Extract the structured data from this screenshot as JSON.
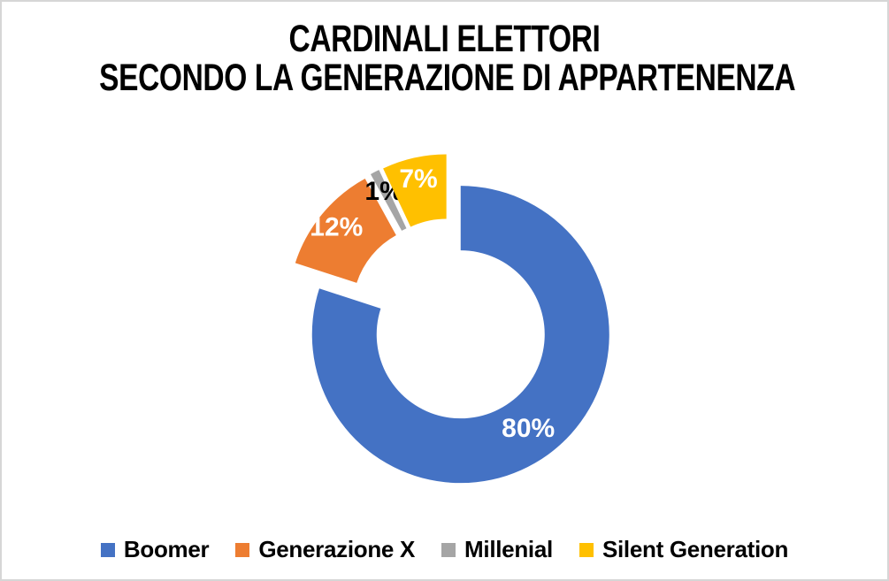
{
  "title_lines": [
    "CARDINALI ELETTORI",
    "SECONDO LA GENERAZIONE DI APPARTENENZA"
  ],
  "chart_data": {
    "type": "pie",
    "subtype": "exploded-doughnut",
    "title": "CARDINALI ELETTORI SECONDO LA GENERAZIONE DI APPARTENENZA",
    "categories": [
      "Boomer",
      "Generazione X",
      "Millenial",
      "Silent Generation"
    ],
    "values": [
      80,
      12,
      1,
      7
    ],
    "data_labels": [
      "80%",
      "12%",
      "1%",
      "7%"
    ],
    "colors": [
      "#4472C4",
      "#ED7D31",
      "#A5A5A5",
      "#FFC000"
    ],
    "data_label_colors": [
      "#FFFFFF",
      "#FFFFFF",
      "#000000",
      "#FFFFFF"
    ],
    "start_angle_deg": 0,
    "direction": "clockwise",
    "legend_position": "bottom",
    "background_color": "#FFFFFF",
    "frame_border_color": "#D6D6D6"
  }
}
